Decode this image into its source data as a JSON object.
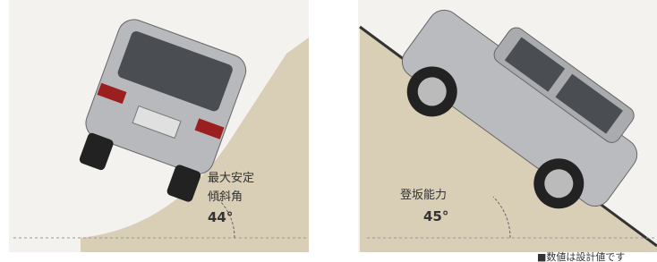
{
  "left": {
    "label_line1": "最大安定",
    "label_line2": "傾斜角",
    "angle": "44°"
  },
  "right": {
    "label": "登坂能力",
    "angle": "45°"
  },
  "footnote": "■数値は設計値です"
}
